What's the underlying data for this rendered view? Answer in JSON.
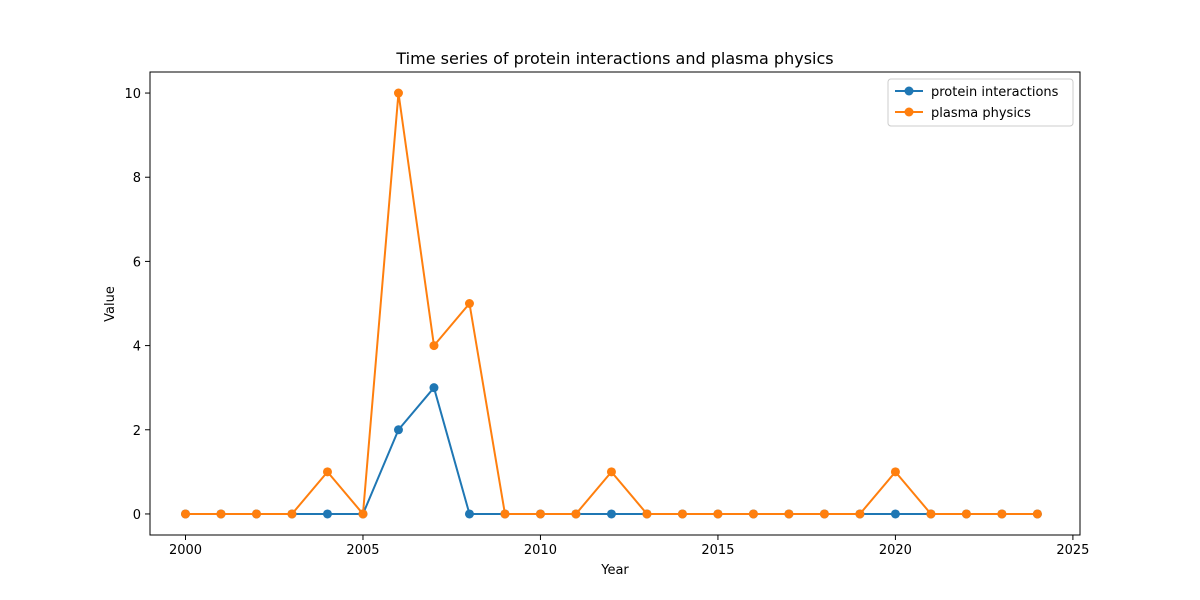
{
  "chart_data": {
    "type": "line",
    "title": "Time series of protein interactions and plasma physics",
    "xlabel": "Year",
    "ylabel": "Value",
    "xlim": [
      1999.0,
      2025.2
    ],
    "ylim": [
      -0.5,
      10.5
    ],
    "xticks": [
      2000,
      2005,
      2010,
      2015,
      2020,
      2025
    ],
    "yticks": [
      0,
      2,
      4,
      6,
      8,
      10
    ],
    "grid": false,
    "legend_position": "top-right",
    "x": [
      2000,
      2001,
      2002,
      2003,
      2004,
      2005,
      2006,
      2007,
      2008,
      2009,
      2010,
      2011,
      2012,
      2013,
      2014,
      2015,
      2016,
      2017,
      2018,
      2019,
      2020,
      2021,
      2022,
      2023,
      2024
    ],
    "series": [
      {
        "name": "protein interactions",
        "color": "#1f77b4",
        "values": [
          0,
          0,
          0,
          0,
          0,
          0,
          2,
          3,
          0,
          0,
          0,
          0,
          0,
          0,
          0,
          0,
          0,
          0,
          0,
          0,
          0,
          0,
          0,
          0,
          0
        ]
      },
      {
        "name": "plasma physics",
        "color": "#ff7f0e",
        "values": [
          0,
          0,
          0,
          0,
          1,
          0,
          10,
          4,
          5,
          0,
          0,
          0,
          1,
          0,
          0,
          0,
          0,
          0,
          0,
          0,
          1,
          0,
          0,
          0,
          0
        ]
      }
    ]
  }
}
